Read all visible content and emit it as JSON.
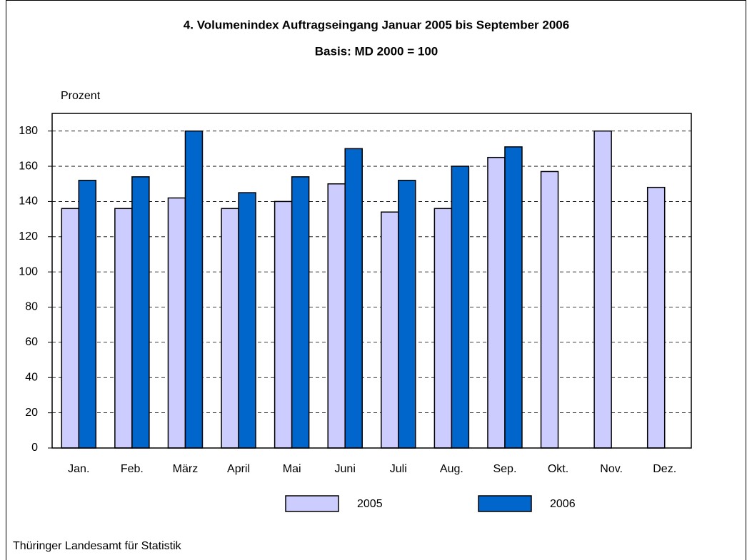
{
  "chart_data": {
    "type": "bar",
    "title": "4. Volumenindex Auftragseingang Januar 2005 bis September 2006",
    "subtitle": "Basis: MD 2000 = 100",
    "y_label": "Prozent",
    "source": "Thüringer Landesamt für Statistik",
    "categories": [
      "Jan.",
      "Feb.",
      "März",
      "April",
      "Mai",
      "Juni",
      "Juli",
      "Aug.",
      "Sep.",
      "Okt.",
      "Nov.",
      "Dez."
    ],
    "series": [
      {
        "name": "2005",
        "color": "#ccccff",
        "values": [
          136,
          136,
          142,
          136,
          140,
          150,
          134,
          136,
          165,
          157,
          180,
          148
        ]
      },
      {
        "name": "2006",
        "color": "#0066cc",
        "values": [
          152,
          154,
          180,
          145,
          154,
          170,
          152,
          160,
          171,
          null,
          null,
          null
        ]
      }
    ],
    "ylim": [
      0,
      190
    ],
    "yticks": [
      0,
      20,
      40,
      60,
      80,
      100,
      120,
      140,
      160,
      180
    ],
    "grid": true
  }
}
